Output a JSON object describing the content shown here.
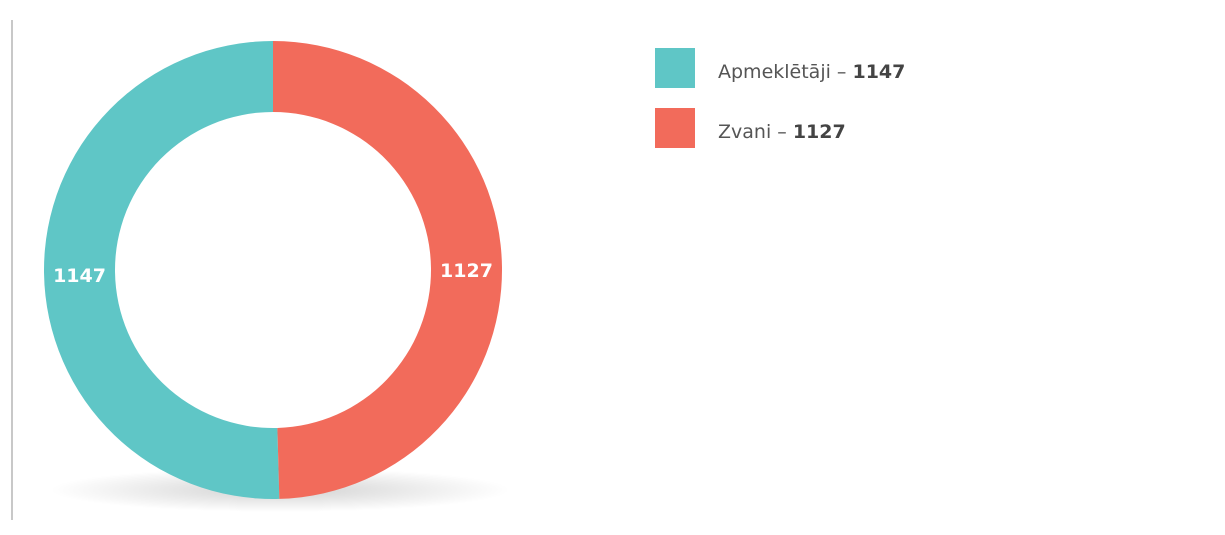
{
  "chart_data": {
    "type": "donut",
    "categories": [
      "Apmeklētāji",
      "Zvani"
    ],
    "values": [
      1147,
      1127
    ],
    "colors": [
      "#5fc6c6",
      "#f26b5b"
    ],
    "legend_separator": " – "
  }
}
